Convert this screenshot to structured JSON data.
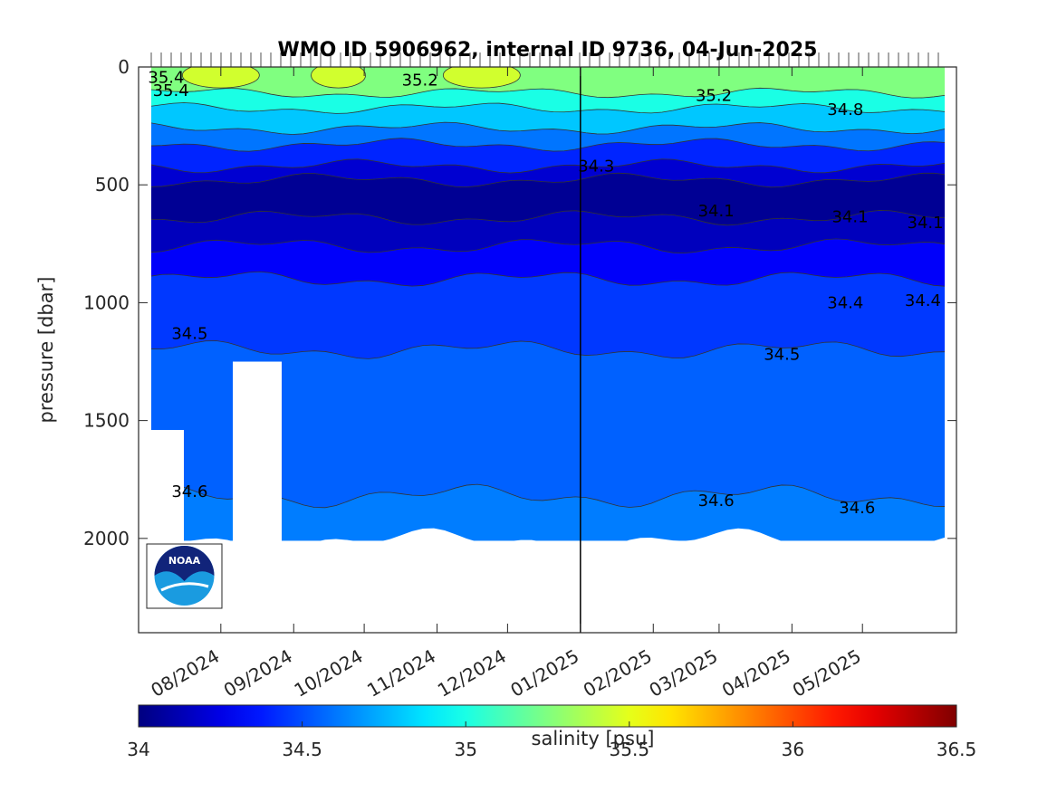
{
  "chart_data": {
    "type": "heatmap",
    "title": "WMO ID 5906962, internal ID 9736, 04-Jun-2025",
    "xlabel": "",
    "ylabel": "pressure [dbar]",
    "x_tick_labels": [
      "08/2024",
      "09/2024",
      "10/2024",
      "11/2024",
      "12/2024",
      "01/2025",
      "02/2025",
      "03/2025",
      "04/2025",
      "05/2025"
    ],
    "x_range": [
      "2024-06-27",
      "2025-06-10"
    ],
    "y_range": [
      0,
      2400
    ],
    "y_reversed": true,
    "y_ticks": [
      0,
      500,
      1000,
      1500,
      2000
    ],
    "vertical_marker_date": "2025-01-01",
    "colorbar": {
      "label": "salinity [psu]",
      "range": [
        34,
        36.5
      ],
      "ticks": [
        34,
        34.5,
        35,
        35.5,
        36,
        36.5
      ],
      "colormap": "jet"
    },
    "layers": [
      {
        "salinity": 35.25,
        "from_depth": 0,
        "to_depth": 110
      },
      {
        "salinity": 35.0,
        "from_depth": 110,
        "to_depth": 175
      },
      {
        "salinity": 34.8,
        "from_depth": 175,
        "to_depth": 260
      },
      {
        "salinity": 34.6,
        "from_depth": 260,
        "to_depth": 330
      },
      {
        "salinity": 34.4,
        "from_depth": 330,
        "to_depth": 420
      },
      {
        "salinity": 34.2,
        "from_depth": 420,
        "to_depth": 480
      },
      {
        "salinity": 34.05,
        "from_depth": 480,
        "to_depth": 640
      },
      {
        "salinity": 34.15,
        "from_depth": 640,
        "to_depth": 760
      },
      {
        "salinity": 34.3,
        "from_depth": 760,
        "to_depth": 900
      },
      {
        "salinity": 34.45,
        "from_depth": 900,
        "to_depth": 1200
      },
      {
        "salinity": 34.55,
        "from_depth": 1200,
        "to_depth": 1820
      },
      {
        "salinity": 34.62,
        "from_depth": 1820,
        "to_depth": 2010
      }
    ],
    "contour_labels": [
      {
        "text": "35.4",
        "date": "2024-07-01",
        "depth": 45
      },
      {
        "text": "35.4",
        "date": "2024-07-03",
        "depth": 100
      },
      {
        "text": "35.2",
        "date": "2024-10-17",
        "depth": 55
      },
      {
        "text": "35.2",
        "date": "2025-02-19",
        "depth": 120
      },
      {
        "text": "34.8",
        "date": "2025-04-16",
        "depth": 180
      },
      {
        "text": "34.3",
        "date": "2024-12-31",
        "depth": 420
      },
      {
        "text": "34.1",
        "date": "2025-02-20",
        "depth": 610
      },
      {
        "text": "34.1",
        "date": "2025-04-18",
        "depth": 635
      },
      {
        "text": "34.1",
        "date": "2025-05-20",
        "depth": 660
      },
      {
        "text": "34.4",
        "date": "2025-04-16",
        "depth": 1000
      },
      {
        "text": "34.4",
        "date": "2025-05-19",
        "depth": 990
      },
      {
        "text": "34.5",
        "date": "2024-07-11",
        "depth": 1130
      },
      {
        "text": "34.5",
        "date": "2025-03-20",
        "depth": 1220
      },
      {
        "text": "34.6",
        "date": "2024-07-11",
        "depth": 1800
      },
      {
        "text": "34.6",
        "date": "2025-02-20",
        "depth": 1840
      },
      {
        "text": "34.6",
        "date": "2025-04-21",
        "depth": 1870
      }
    ]
  },
  "logo": {
    "text": "NOAA",
    "name": "noaa-logo"
  }
}
